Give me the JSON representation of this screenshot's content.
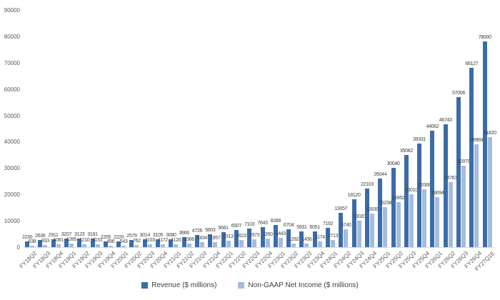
{
  "chart_data": {
    "type": "bar",
    "title": "",
    "xlabel": "",
    "ylabel": "",
    "categories": [
      "FY18Q2",
      "FY18Q3",
      "FY18Q4",
      "FY19Q1",
      "FY19Q2",
      "FY19Q3",
      "FY19Q4",
      "FY20Q1",
      "FY20Q2",
      "FY20Q3",
      "FY20Q4",
      "FY21Q1",
      "FY21Q2",
      "FY21Q3",
      "FY21Q4",
      "FY22Q1",
      "FY22Q2",
      "FY22Q3",
      "FY22Q4",
      "FY23Q1",
      "FY23Q2",
      "FY23Q3",
      "FY23Q4",
      "FY24Q1",
      "FY24Q2",
      "FY24Q3",
      "FY24Q4",
      "FY25Q1",
      "FY25Q2",
      "FY25Q3",
      "FY25Q4",
      "FY26Q1",
      "FY26Q2",
      "FY26Q3",
      "FY26Q4",
      "FY27Q1E"
    ],
    "series": [
      {
        "name": "Revenue ($ millions)",
        "color": "#3B6CA8",
        "values": [
          2230,
          2636,
          2911,
          3207,
          3123,
          3181,
          2205,
          2220,
          2579,
          3014,
          3105,
          3080,
          3866,
          4726,
          5003,
          5661,
          6507,
          7103,
          7643,
          8288,
          6704,
          5931,
          6051,
          7192,
          13057,
          18120,
          22103,
          26044,
          30040,
          35082,
          39331,
          44062,
          46743,
          57006,
          68127,
          78000
        ]
      },
      {
        "name": "Non-GAAP Net Income ($ millions)",
        "color": "#A5BCDC",
        "values": [
          638,
          833,
          1081,
          1285,
          1210,
          1151,
          496,
          543,
          762,
          1103,
          1172,
          1120,
          1366,
          1834,
          1957,
          2313,
          2623,
          2973,
          3350,
          3443,
          1292,
          1456,
          2174,
          2713,
          6740,
          10020,
          12839,
          15238,
          16952,
          20010,
          22066,
          19094,
          24763,
          30979,
          38969,
          41820
        ]
      }
    ],
    "ylim": [
      0,
      90000
    ],
    "yticks": [
      0,
      10000,
      20000,
      30000,
      40000,
      50000,
      60000,
      70000,
      80000,
      90000
    ],
    "grid": false,
    "data_labels": true,
    "legend_position": "bottom"
  },
  "colors": {
    "revenue_bar": "#3B6CA8",
    "net_income_bar": "#A5BCDC",
    "value_label": "#404040",
    "axis_label": "#595959",
    "axis_line": "#D9D9D9",
    "background": "#FFFFFF"
  }
}
